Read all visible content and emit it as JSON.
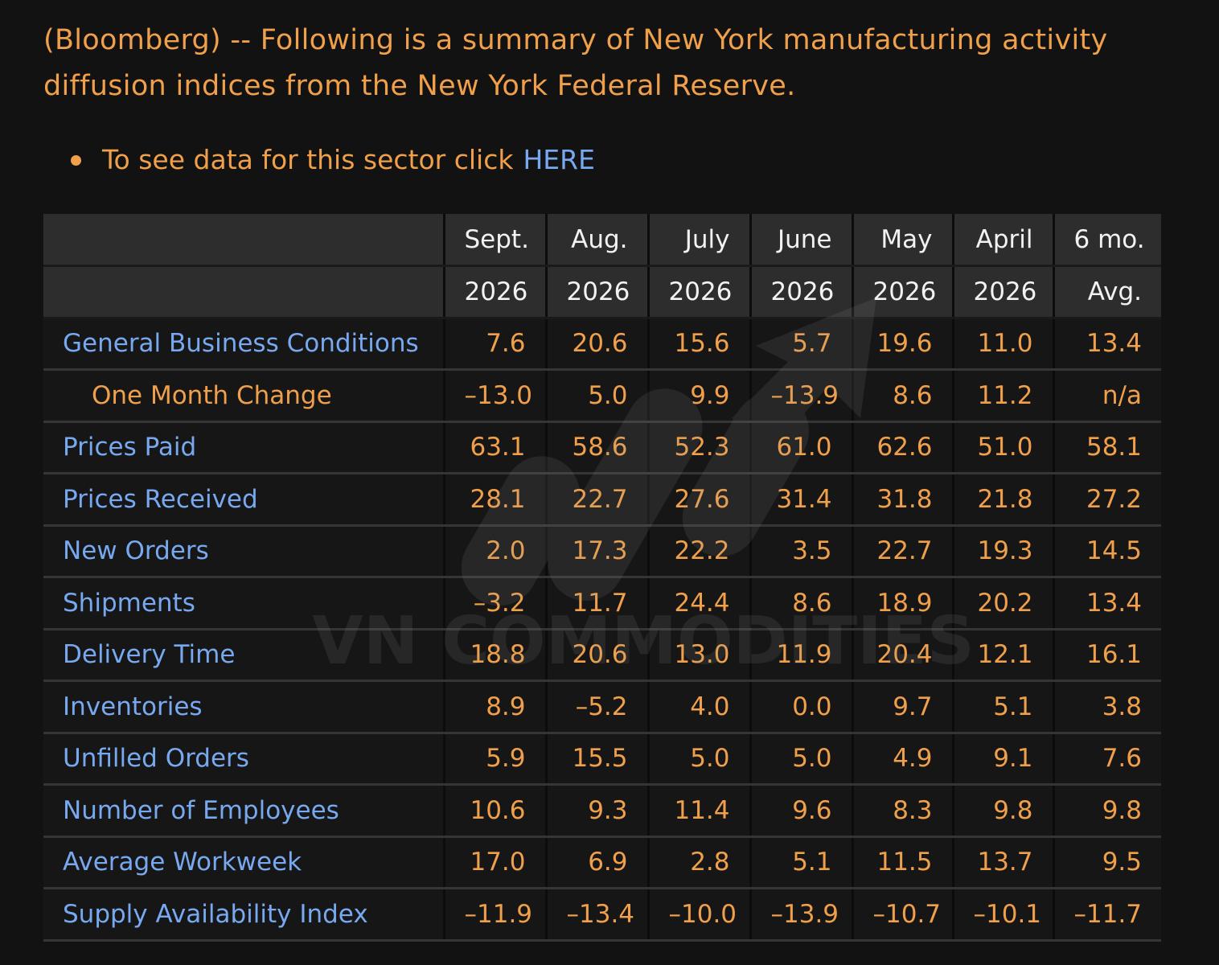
{
  "intro": {
    "text": "(Bloomberg) -- Following is a summary of New York manufacturing activity diffusion indices from the New York Federal Reserve."
  },
  "bullet": {
    "text": "To see data for this sector click",
    "link_label": "HERE"
  },
  "table": {
    "header_top": [
      "",
      "Sept.",
      "Aug.",
      "July",
      "June",
      "May",
      "April",
      "6 mo."
    ],
    "header_bottom": [
      "",
      "2026",
      "2026",
      "2026",
      "2026",
      "2026",
      "2026",
      "Avg."
    ],
    "rows": [
      {
        "label": "General Business Conditions",
        "sub": false,
        "values": [
          "7.6",
          "20.6",
          "15.6",
          "5.7",
          "19.6",
          "11.0",
          "13.4"
        ]
      },
      {
        "label": "One Month Change",
        "sub": true,
        "values": [
          "–13.0",
          "5.0",
          "9.9",
          "–13.9",
          "8.6",
          "11.2",
          "n/a"
        ]
      },
      {
        "label": "Prices Paid",
        "sub": false,
        "values": [
          "63.1",
          "58.6",
          "52.3",
          "61.0",
          "62.6",
          "51.0",
          "58.1"
        ]
      },
      {
        "label": "Prices Received",
        "sub": false,
        "values": [
          "28.1",
          "22.7",
          "27.6",
          "31.4",
          "31.8",
          "21.8",
          "27.2"
        ]
      },
      {
        "label": "New Orders",
        "sub": false,
        "values": [
          "2.0",
          "17.3",
          "22.2",
          "3.5",
          "22.7",
          "19.3",
          "14.5"
        ]
      },
      {
        "label": "Shipments",
        "sub": false,
        "values": [
          "–3.2",
          "11.7",
          "24.4",
          "8.6",
          "18.9",
          "20.2",
          "13.4"
        ]
      },
      {
        "label": "Delivery Time",
        "sub": false,
        "values": [
          "18.8",
          "20.6",
          "13.0",
          "11.9",
          "20.4",
          "12.1",
          "16.1"
        ]
      },
      {
        "label": "Inventories",
        "sub": false,
        "values": [
          "8.9",
          "–5.2",
          "4.0",
          "0.0",
          "9.7",
          "5.1",
          "3.8"
        ]
      },
      {
        "label": "Unfilled Orders",
        "sub": false,
        "values": [
          "5.9",
          "15.5",
          "5.0",
          "5.0",
          "4.9",
          "9.1",
          "7.6"
        ]
      },
      {
        "label": "Number of Employees",
        "sub": false,
        "values": [
          "10.6",
          "9.3",
          "11.4",
          "9.6",
          "8.3",
          "9.8",
          "9.8"
        ]
      },
      {
        "label": "Average Workweek",
        "sub": false,
        "values": [
          "17.0",
          "6.9",
          "2.8",
          "5.1",
          "11.5",
          "13.7",
          "9.5"
        ]
      },
      {
        "label": "Supply Availability Index",
        "sub": false,
        "values": [
          "–11.9",
          "–13.4",
          "–10.0",
          "–13.9",
          "–10.7",
          "–10.1",
          "–11.7"
        ]
      }
    ]
  },
  "watermark": {
    "text": "VN COMMODITIES"
  },
  "colors": {
    "background": "#121212",
    "accent_orange": "#f0a04a",
    "label_blue": "#78a9f0",
    "header_bg": "#2d2d2d"
  }
}
